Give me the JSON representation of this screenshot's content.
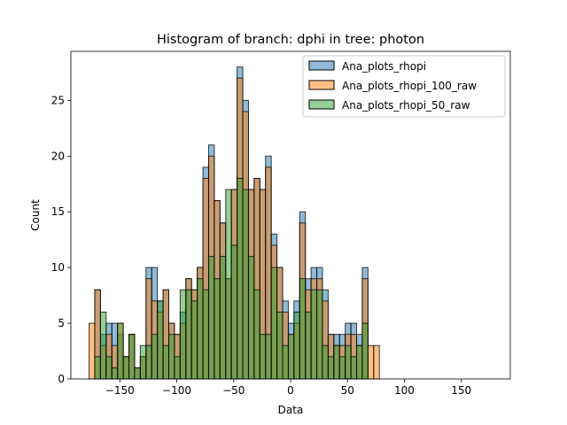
{
  "chart_data": {
    "type": "histogram",
    "title": "Histogram of branch: dphi in tree: photon",
    "xlabel": "Data",
    "ylabel": "Count",
    "xlim": [
      -193,
      193
    ],
    "ylim": [
      0,
      29.4
    ],
    "xticks": [
      -150,
      -100,
      -50,
      0,
      50,
      100,
      150
    ],
    "yticks": [
      0,
      5,
      10,
      15,
      20,
      25
    ],
    "bin_start": -177,
    "bin_width": 5,
    "legend_position": "top-right",
    "series": [
      {
        "name": "Ana_plots_rhopi",
        "color": "#1f77b4",
        "values": [
          0,
          8,
          4,
          5,
          5,
          4,
          2,
          4,
          1,
          2,
          10,
          10,
          7,
          8,
          5,
          4,
          6,
          9,
          8,
          10,
          19,
          21,
          16,
          14,
          9,
          17,
          28,
          25,
          17,
          18,
          17,
          20,
          13,
          10,
          7,
          5,
          7,
          15,
          9,
          10,
          10,
          8,
          4,
          4,
          4,
          5,
          5,
          4,
          10,
          0,
          0
        ]
      },
      {
        "name": "Ana_plots_rhopi_100_raw",
        "color": "#ff7f0e",
        "values": [
          5,
          8,
          3,
          4,
          3,
          5,
          2,
          4,
          1,
          2,
          9,
          7,
          6,
          8,
          5,
          4,
          5,
          9,
          8,
          10,
          18,
          20,
          16,
          14,
          9,
          17,
          27,
          24,
          17,
          18,
          17,
          19,
          12,
          10,
          6,
          4,
          5,
          14,
          8,
          9,
          9,
          7,
          4,
          3,
          3,
          4,
          4,
          3,
          9,
          3,
          3
        ]
      },
      {
        "name": "Ana_plots_rhopi_50_raw",
        "color": "#2ca02c",
        "values": [
          0,
          2,
          6,
          2,
          1,
          5,
          2,
          4,
          1,
          3,
          3,
          4,
          7,
          3,
          4,
          2,
          8,
          8,
          7,
          9,
          8,
          11,
          9,
          11,
          17,
          12,
          18,
          17,
          11,
          8,
          4,
          4,
          10,
          6,
          3,
          4,
          6,
          9,
          6,
          8,
          8,
          3,
          2,
          3,
          2,
          3,
          2,
          3,
          5,
          0,
          0
        ]
      }
    ]
  }
}
